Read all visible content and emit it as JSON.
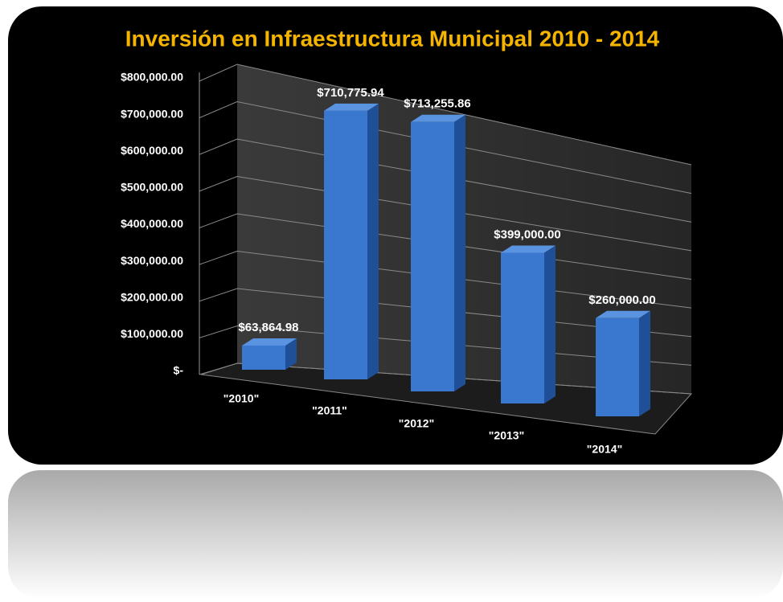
{
  "chart_data": {
    "type": "bar3d",
    "title": "Inversión en Infraestructura Municipal 2010 - 2014",
    "categories": [
      "\"2010\"",
      "\"2011\"",
      "\"2012\"",
      "\"2013\"",
      "\"2014\""
    ],
    "values": [
      63864.98,
      710775.94,
      713255.86,
      399000,
      260000
    ],
    "value_labels": [
      "$63,864.98",
      "$710,775.94",
      "$713,255.86",
      "$399,000.00",
      "$260,000.00"
    ],
    "color": "#3a78d0",
    "ylim": [
      0,
      800000
    ],
    "yticks": [
      {
        "value": 0,
        "label": "$-"
      },
      {
        "value": 100000,
        "label": "$100,000.00"
      },
      {
        "value": 200000,
        "label": "$200,000.00"
      },
      {
        "value": 300000,
        "label": "$300,000.00"
      },
      {
        "value": 400000,
        "label": "$400,000.00"
      },
      {
        "value": 500000,
        "label": "$500,000.00"
      },
      {
        "value": 600000,
        "label": "$600,000.00"
      },
      {
        "value": 700000,
        "label": "$700,000.00"
      },
      {
        "value": 800000,
        "label": "$800,000.00"
      }
    ],
    "grid": true
  }
}
